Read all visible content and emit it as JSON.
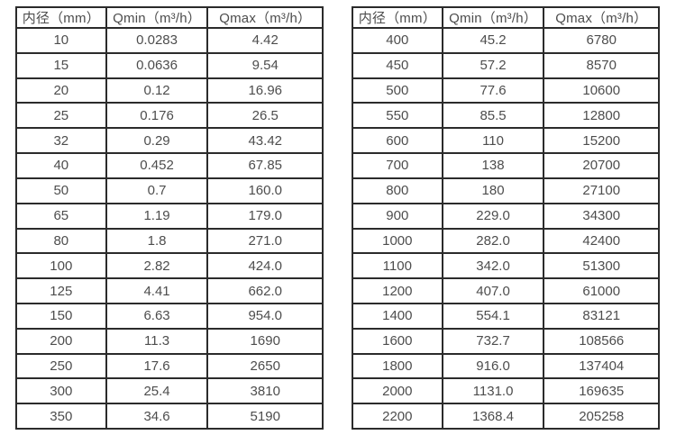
{
  "page": {
    "background": "#ffffff",
    "text_color": "#4d4d4d",
    "border_color": "#2b2b2b"
  },
  "tables": [
    {
      "name": "flow-rate-table-small-diameters",
      "headers": [
        "内径（mm）",
        "Qmin（m³/h）",
        "Qmax（m³/h）"
      ],
      "rows": [
        [
          "10",
          "0.0283",
          "4.42"
        ],
        [
          "15",
          "0.0636",
          "9.54"
        ],
        [
          "20",
          "0.12",
          "16.96"
        ],
        [
          "25",
          "0.176",
          "26.5"
        ],
        [
          "32",
          "0.29",
          "43.42"
        ],
        [
          "40",
          "0.452",
          "67.85"
        ],
        [
          "50",
          "0.7",
          "160.0"
        ],
        [
          "65",
          "1.19",
          "179.0"
        ],
        [
          "80",
          "1.8",
          "271.0"
        ],
        [
          "100",
          "2.82",
          "424.0"
        ],
        [
          "125",
          "4.41",
          "662.0"
        ],
        [
          "150",
          "6.63",
          "954.0"
        ],
        [
          "200",
          "11.3",
          "1690"
        ],
        [
          "250",
          "17.6",
          "2650"
        ],
        [
          "300",
          "25.4",
          "3810"
        ],
        [
          "350",
          "34.6",
          "5190"
        ]
      ]
    },
    {
      "name": "flow-rate-table-large-diameters",
      "headers": [
        "内径（mm）",
        "Qmin（m³/h）",
        "Qmax（m³/h）"
      ],
      "rows": [
        [
          "400",
          "45.2",
          "6780"
        ],
        [
          "450",
          "57.2",
          "8570"
        ],
        [
          "500",
          "77.6",
          "10600"
        ],
        [
          "550",
          "85.5",
          "12800"
        ],
        [
          "600",
          "110",
          "15200"
        ],
        [
          "700",
          "138",
          "20700"
        ],
        [
          "800",
          "180",
          "27100"
        ],
        [
          "900",
          "229.0",
          "34300"
        ],
        [
          "1000",
          "282.0",
          "42400"
        ],
        [
          "1100",
          "342.0",
          "51300"
        ],
        [
          "1200",
          "407.0",
          "61000"
        ],
        [
          "1400",
          "554.1",
          "83121"
        ],
        [
          "1600",
          "732.7",
          "108566"
        ],
        [
          "1800",
          "916.0",
          "137404"
        ],
        [
          "2000",
          "1131.0",
          "169635"
        ],
        [
          "2200",
          "1368.4",
          "205258"
        ]
      ]
    }
  ]
}
